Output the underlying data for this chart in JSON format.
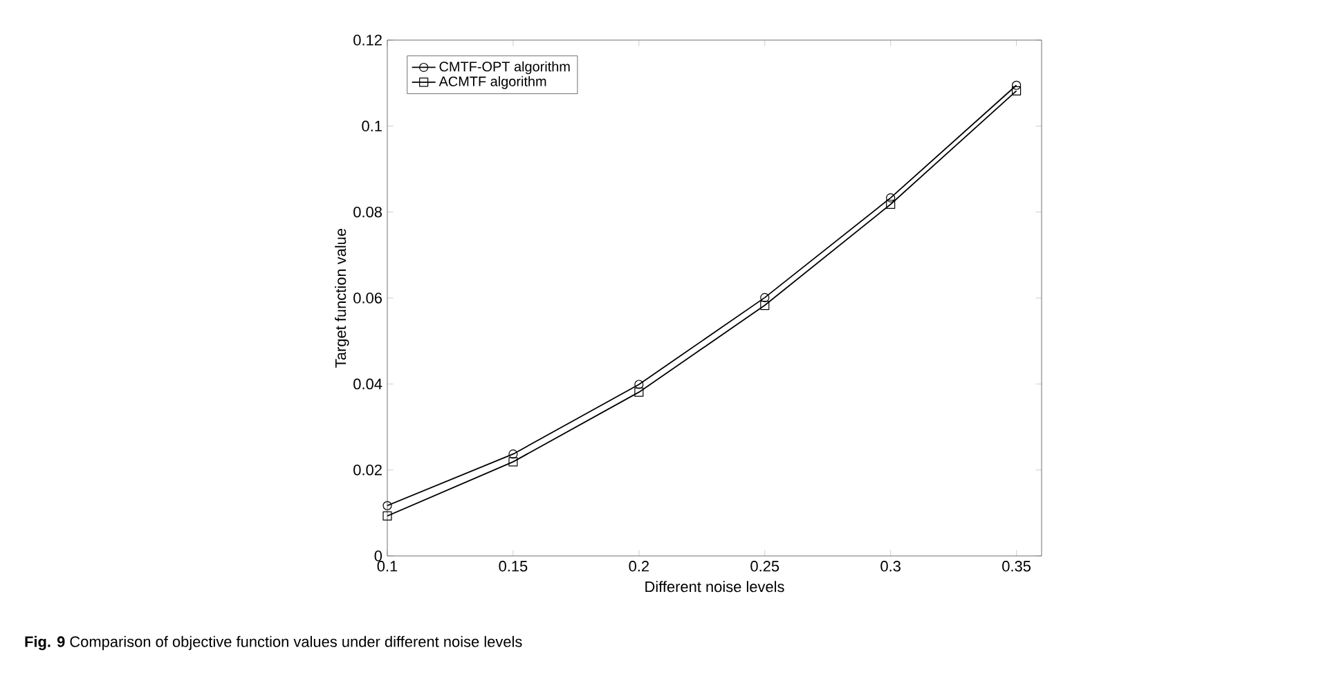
{
  "chart_data": {
    "type": "line",
    "xlabel": "Different noise levels",
    "ylabel": "Target function value",
    "x": [
      0.1,
      0.15,
      0.2,
      0.25,
      0.3,
      0.35
    ],
    "series": [
      {
        "name": "CMTF-OPT algorithm",
        "color": "#000000",
        "marker": "circle",
        "values": [
          0.0117,
          0.0237,
          0.0399,
          0.0601,
          0.0833,
          0.1095
        ]
      },
      {
        "name": "ACMTF algorithm",
        "color": "#000000",
        "marker": "square",
        "values": [
          0.0093,
          0.0219,
          0.0381,
          0.0583,
          0.0818,
          0.1082
        ]
      }
    ],
    "xlim": [
      0.1,
      0.36
    ],
    "ylim": [
      0,
      0.12
    ],
    "xticks": [
      0.1,
      0.15,
      0.2,
      0.25,
      0.3,
      0.35
    ],
    "yticks": [
      0,
      0.02,
      0.04,
      0.06,
      0.08,
      0.1,
      0.12
    ],
    "grid": false,
    "legend": "top left",
    "line_style": "solid",
    "annotations": [
      "**Fig. 9**  Comparison of objective function values under different noise levels"
    ]
  }
}
